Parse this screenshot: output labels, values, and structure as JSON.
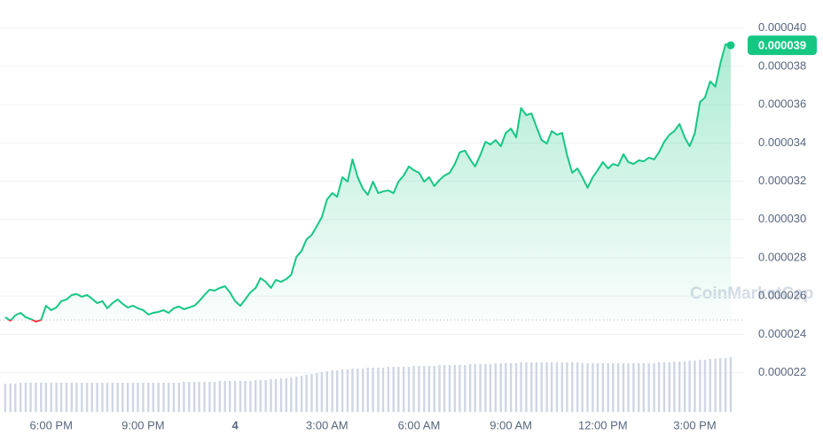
{
  "chart_data": {
    "type": "area_line",
    "watermark": "CoinMarketCap",
    "last_label": "0.000039",
    "color": "#16c784",
    "down_color": "#ea3943",
    "volume_color": "#cfd6e4",
    "baseline": 2.476e-05,
    "grid": true,
    "xlim": [
      16.33,
      40.23
    ],
    "xticks": [
      {
        "value": 18,
        "label": "6:00 PM"
      },
      {
        "value": 21,
        "label": "9:00 PM"
      },
      {
        "value": 24,
        "label": "4"
      },
      {
        "value": 27,
        "label": "3:00 AM"
      },
      {
        "value": 30,
        "label": "6:00 AM"
      },
      {
        "value": 33,
        "label": "9:00 AM"
      },
      {
        "value": 36,
        "label": "12:00 PM"
      },
      {
        "value": 39,
        "label": "3:00 PM"
      }
    ],
    "ylim": [
      2e-05,
      4.1e-05
    ],
    "yticks": [
      2.2e-05,
      2.4e-05,
      2.6e-05,
      2.8e-05,
      {
        "value": 3e-05,
        "label": "0.000030"
      },
      3.2e-05,
      3.4e-05,
      3.6e-05,
      3.8e-05,
      {
        "value": 4e-05,
        "label": "0.000040"
      }
    ],
    "x": [
      16.5,
      16.67,
      16.83,
      17,
      17.17,
      17.33,
      17.5,
      17.67,
      17.83,
      18,
      18.17,
      18.33,
      18.5,
      18.67,
      18.83,
      19,
      19.17,
      19.33,
      19.5,
      19.67,
      19.83,
      20,
      20.17,
      20.33,
      20.5,
      20.67,
      20.83,
      21,
      21.17,
      21.33,
      21.5,
      21.67,
      21.83,
      22,
      22.17,
      22.33,
      22.5,
      22.67,
      22.83,
      23,
      23.17,
      23.33,
      23.5,
      23.67,
      23.83,
      24,
      24.17,
      24.33,
      24.5,
      24.67,
      24.83,
      25,
      25.17,
      25.33,
      25.5,
      25.67,
      25.83,
      26,
      26.17,
      26.33,
      26.5,
      26.67,
      26.83,
      27,
      27.17,
      27.33,
      27.5,
      27.67,
      27.83,
      28,
      28.17,
      28.33,
      28.5,
      28.67,
      28.83,
      29,
      29.17,
      29.33,
      29.5,
      29.67,
      29.83,
      30,
      30.17,
      30.33,
      30.5,
      30.67,
      30.83,
      31,
      31.17,
      31.33,
      31.5,
      31.67,
      31.83,
      32,
      32.17,
      32.33,
      32.5,
      32.67,
      32.83,
      33,
      33.17,
      33.33,
      33.5,
      33.67,
      33.83,
      34,
      34.17,
      34.33,
      34.5,
      34.67,
      34.83,
      35,
      35.17,
      35.33,
      35.5,
      35.67,
      35.83,
      36,
      36.17,
      36.33,
      36.5,
      36.67,
      36.83,
      37,
      37.17,
      37.33,
      37.5,
      37.67,
      37.83,
      38,
      38.17,
      38.33,
      38.5,
      38.67,
      38.83,
      39,
      39.17,
      39.33,
      39.5,
      39.67,
      39.83,
      40,
      40.17
    ],
    "values": [
      2.49e-05,
      2.472e-05,
      2.5e-05,
      2.513e-05,
      2.49e-05,
      2.481e-05,
      2.467e-05,
      2.476e-05,
      2.55e-05,
      2.527e-05,
      2.541e-05,
      2.574e-05,
      2.583e-05,
      2.606e-05,
      2.611e-05,
      2.597e-05,
      2.606e-05,
      2.587e-05,
      2.564e-05,
      2.574e-05,
      2.537e-05,
      2.564e-05,
      2.583e-05,
      2.56e-05,
      2.541e-05,
      2.55e-05,
      2.537e-05,
      2.527e-05,
      2.504e-05,
      2.513e-05,
      2.518e-05,
      2.527e-05,
      2.513e-05,
      2.537e-05,
      2.546e-05,
      2.532e-05,
      2.541e-05,
      2.55e-05,
      2.574e-05,
      2.606e-05,
      2.634e-05,
      2.629e-05,
      2.643e-05,
      2.652e-05,
      2.62e-05,
      2.574e-05,
      2.55e-05,
      2.583e-05,
      2.62e-05,
      2.643e-05,
      2.694e-05,
      2.675e-05,
      2.643e-05,
      2.685e-05,
      2.675e-05,
      2.689e-05,
      2.712e-05,
      2.805e-05,
      2.837e-05,
      2.897e-05,
      2.92e-05,
      2.967e-05,
      3.013e-05,
      3.105e-05,
      3.138e-05,
      3.119e-05,
      3.221e-05,
      3.198e-05,
      3.314e-05,
      3.221e-05,
      3.161e-05,
      3.129e-05,
      3.198e-05,
      3.138e-05,
      3.147e-05,
      3.152e-05,
      3.138e-05,
      3.198e-05,
      3.23e-05,
      3.277e-05,
      3.258e-05,
      3.244e-05,
      3.198e-05,
      3.221e-05,
      3.175e-05,
      3.207e-05,
      3.23e-05,
      3.244e-05,
      3.29e-05,
      3.351e-05,
      3.36e-05,
      3.314e-05,
      3.277e-05,
      3.337e-05,
      3.406e-05,
      3.392e-05,
      3.415e-05,
      3.383e-05,
      3.452e-05,
      3.475e-05,
      3.429e-05,
      3.582e-05,
      3.545e-05,
      3.554e-05,
      3.485e-05,
      3.415e-05,
      3.397e-05,
      3.462e-05,
      3.443e-05,
      3.452e-05,
      3.337e-05,
      3.244e-05,
      3.267e-05,
      3.221e-05,
      3.166e-05,
      3.221e-05,
      3.258e-05,
      3.3e-05,
      3.267e-05,
      3.29e-05,
      3.281e-05,
      3.341e-05,
      3.3e-05,
      3.29e-05,
      3.309e-05,
      3.304e-05,
      3.323e-05,
      3.314e-05,
      3.351e-05,
      3.406e-05,
      3.443e-05,
      3.462e-05,
      3.499e-05,
      3.429e-05,
      3.383e-05,
      3.452e-05,
      3.614e-05,
      3.637e-05,
      3.721e-05,
      3.694e-05,
      3.813e-05,
      3.915e-05,
      3.91e-05
    ],
    "volume": [
      32,
      32,
      32,
      33,
      33,
      33,
      33,
      33,
      33,
      33,
      33,
      33,
      33,
      33,
      33,
      33,
      33,
      33,
      33,
      33,
      33,
      33,
      33,
      33,
      33,
      33,
      33,
      33,
      33,
      33,
      33,
      33,
      33,
      33,
      33,
      34,
      34,
      34,
      34,
      34,
      34,
      34,
      35,
      35,
      35,
      35,
      35,
      35,
      35,
      36,
      36,
      36,
      37,
      37,
      38,
      38,
      39,
      40,
      41,
      42,
      43,
      44,
      45,
      46,
      47,
      47,
      48,
      48,
      49,
      49,
      49,
      50,
      50,
      50,
      50,
      51,
      51,
      51,
      51,
      51,
      52,
      52,
      52,
      52,
      52,
      53,
      53,
      53,
      53,
      53,
      53,
      54,
      54,
      54,
      54,
      54,
      55,
      55,
      55,
      55,
      55,
      56,
      56,
      56,
      56,
      56,
      56,
      56,
      56,
      56,
      56,
      56,
      56,
      55,
      55,
      55,
      55,
      55,
      55,
      55,
      55,
      55,
      55,
      55,
      55,
      55,
      55,
      55,
      56,
      56,
      56,
      57,
      57,
      57,
      58,
      58,
      59,
      59,
      60,
      60,
      61,
      61,
      62
    ]
  }
}
